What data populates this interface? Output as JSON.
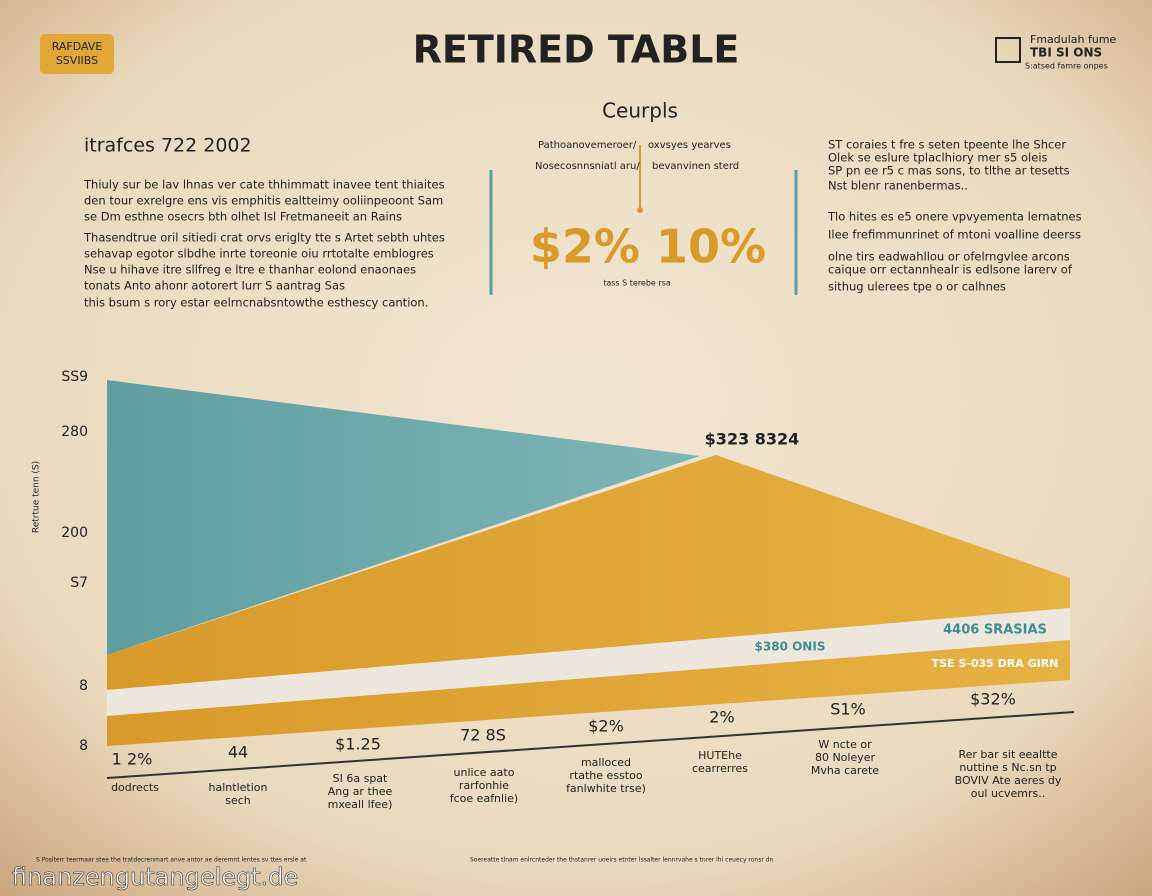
{
  "header": {
    "badge": [
      "RAFDAVE",
      "SSVIIBS"
    ],
    "title": "RETIRED TABLE",
    "logo": [
      "Fmadulah fume",
      "TBI SI ONS",
      "S:atsed famre onpes"
    ]
  },
  "subtitle": "Ceurpls",
  "left": {
    "heading": "itrafces 722 2002",
    "lines": [
      "Thiuly sur be lav lhnas ver cate thhimmatt inavee tent thiaites",
      "den tour exrelgre ens vis emphitis ealtteimy ooliinpeoont Sam",
      "se Dm esthne osecrs bth olhet Isl Fretmaneeit an Rains",
      "Thasendtrue oril sitiedi crat orvs eriglty tte s Artet sebth uhtes",
      "sehavap egotor slbdhe inrte toreonie oiu rrtotalte emblogres",
      "Nse u hihave itre sllfreg e ltre e thanhar eolond enaonaes",
      "tonats Anto ahonr aotorert Iurr S aantrag Sas",
      "this bsum s rory estar eelrncnabsntowthe esthescy cantion."
    ]
  },
  "center": {
    "top_left": [
      "Pathoanovemeroer/",
      "Nosecosnnsniatl aru/"
    ],
    "top_right": [
      "oxvsyes yearves",
      "bevanvinen sterd"
    ],
    "big": "$2% 10%",
    "caption": "tass S terebe rsa"
  },
  "right": {
    "lines": [
      "ST coraies t fre s seten tpeente lhe Shcer",
      "Olek se eslure tplaclhiory mer s5 oleis",
      "SP pn ee r5 c mas sons, to tlthe ar tesetts",
      "Nst blenr ranenbermas..",
      "Tlo hites es e5 onere vpvyementa lernatnes",
      "Ilee frefimmunrinet of mtoni voalline deerss",
      "olne tirs eadwahllou or ofelrngvlee arcons",
      "caique orr ectannhealr is edlsone larerv of",
      "sithug ulerees tpe o or calhnes"
    ]
  },
  "chart": {
    "axis_title": "Retrtue tenn (S)",
    "y_labels": [
      "SS9",
      "280",
      "200",
      "S7",
      "8",
      "8"
    ],
    "annotations": [
      "$323 8324",
      "4406 SRASIAS",
      "$380 ONIS",
      "TSE S-035 DRA GIRN"
    ],
    "value_labels": [
      "1 2%",
      "44",
      "$1.25",
      "72 8S",
      "$2%",
      "2%",
      "S1%",
      "$32%"
    ],
    "captions": [
      [
        "dodrects"
      ],
      [
        "halntletion",
        "sech"
      ],
      [
        "SI 6a spat",
        "Ang ar thee",
        "mxeall lfee)"
      ],
      [
        "unlice aato",
        "rarfonhie",
        "fcoe eafnlie)"
      ],
      [
        "malloced",
        "rtathe esstoo",
        "fanlwhite trse)"
      ],
      [
        "HUTEhe",
        "cearrerres"
      ],
      [
        "W ncte or",
        "80 Noleyer",
        "Mvha carete"
      ],
      [
        "Rer bar sit eealtte",
        "nuttine s Nc.sn tp",
        "BOVIV Ate aeres dy",
        "oul ucvemrs.."
      ]
    ]
  },
  "footer": {
    "left": "S Poslterr teermaar stee the tratdecrenmart anve antor ae deremnt lentes sv ttes ersle at",
    "right": "Soereatte tlnam enlrcnteder the thstanrer uoeirs etnter lssalter lennrvahe s tnrer lhi ceuecy ronsr dn",
    "watermark": "finanzengutangelegt.de"
  }
}
